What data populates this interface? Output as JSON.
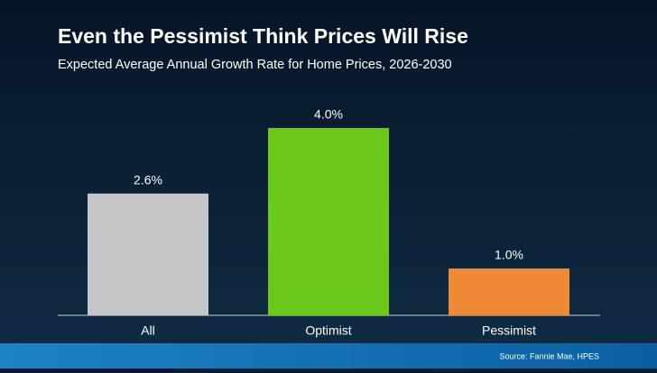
{
  "chart_data": {
    "type": "bar",
    "title": "Even the Pessimist Think Prices Will Rise",
    "subtitle": "Expected Average Annual Growth Rate for Home Prices, 2026-2030",
    "categories": [
      "All",
      "Optimist",
      "Pessimist"
    ],
    "values": [
      2.6,
      4.0,
      1.0
    ],
    "value_labels": [
      "2.6%",
      "4.0%",
      "1.0%"
    ],
    "colors": [
      "#c4c6c8",
      "#6cc81a",
      "#ee8a35"
    ],
    "source": "Source: Fannie Mae, HPES"
  }
}
